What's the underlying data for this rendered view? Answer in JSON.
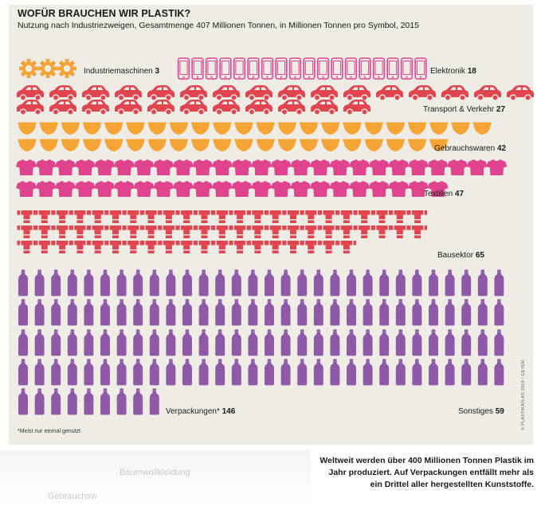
{
  "title": "WOFÜR BRAUCHEN WIR PLASTIK?",
  "subtitle": "Nutzung nach Industriezweigen, Gesamtmenge 407 Millionen Tonnen, in Millionen Tonnen pro Symbol, 2015",
  "footnote": "*Meist nur einmal genutzt",
  "credit": "© PLASTIKATLAS 2019 / GEYER",
  "caption": "Weltweit werden über 400 Millionen Tonnen Plastik im Jahr produziert. Auf Verpackungen entfällt mehr als ein Drittel aller hergestellten Kunststoffe.",
  "faded_text": {
    "line1": "Baumwollkleidung",
    "line2": "Gebrauchsw"
  },
  "chart_data": {
    "type": "pictogram",
    "unit": "Millionen Tonnen pro Symbol",
    "total": 407,
    "categories": [
      {
        "name": "Industriemaschinen",
        "value": 3,
        "icon": "gear-icon",
        "color": "#f4a535"
      },
      {
        "name": "Elektronik",
        "value": 18,
        "icon": "smartphone-icon",
        "color": "#e0448e"
      },
      {
        "name": "Transport & Verkehr",
        "value": 27,
        "icon": "car-icon",
        "color": "#e14550"
      },
      {
        "name": "Gebrauchswaren",
        "value": 42,
        "icon": "bowl-icon",
        "color": "#f4a535"
      },
      {
        "name": "Textilien",
        "value": 47,
        "icon": "tshirt-icon",
        "color": "#e0448e"
      },
      {
        "name": "Bausektor",
        "value": 65,
        "icon": "pipe-icon",
        "color": "#e14550"
      },
      {
        "name": "Verpackungen*",
        "value": 146,
        "icon": "bottle-icon",
        "color": "#8e5aa8"
      },
      {
        "name": "Sonstiges",
        "value": 59,
        "icon": "bottle-icon",
        "color": "#8e5aa8"
      }
    ]
  }
}
